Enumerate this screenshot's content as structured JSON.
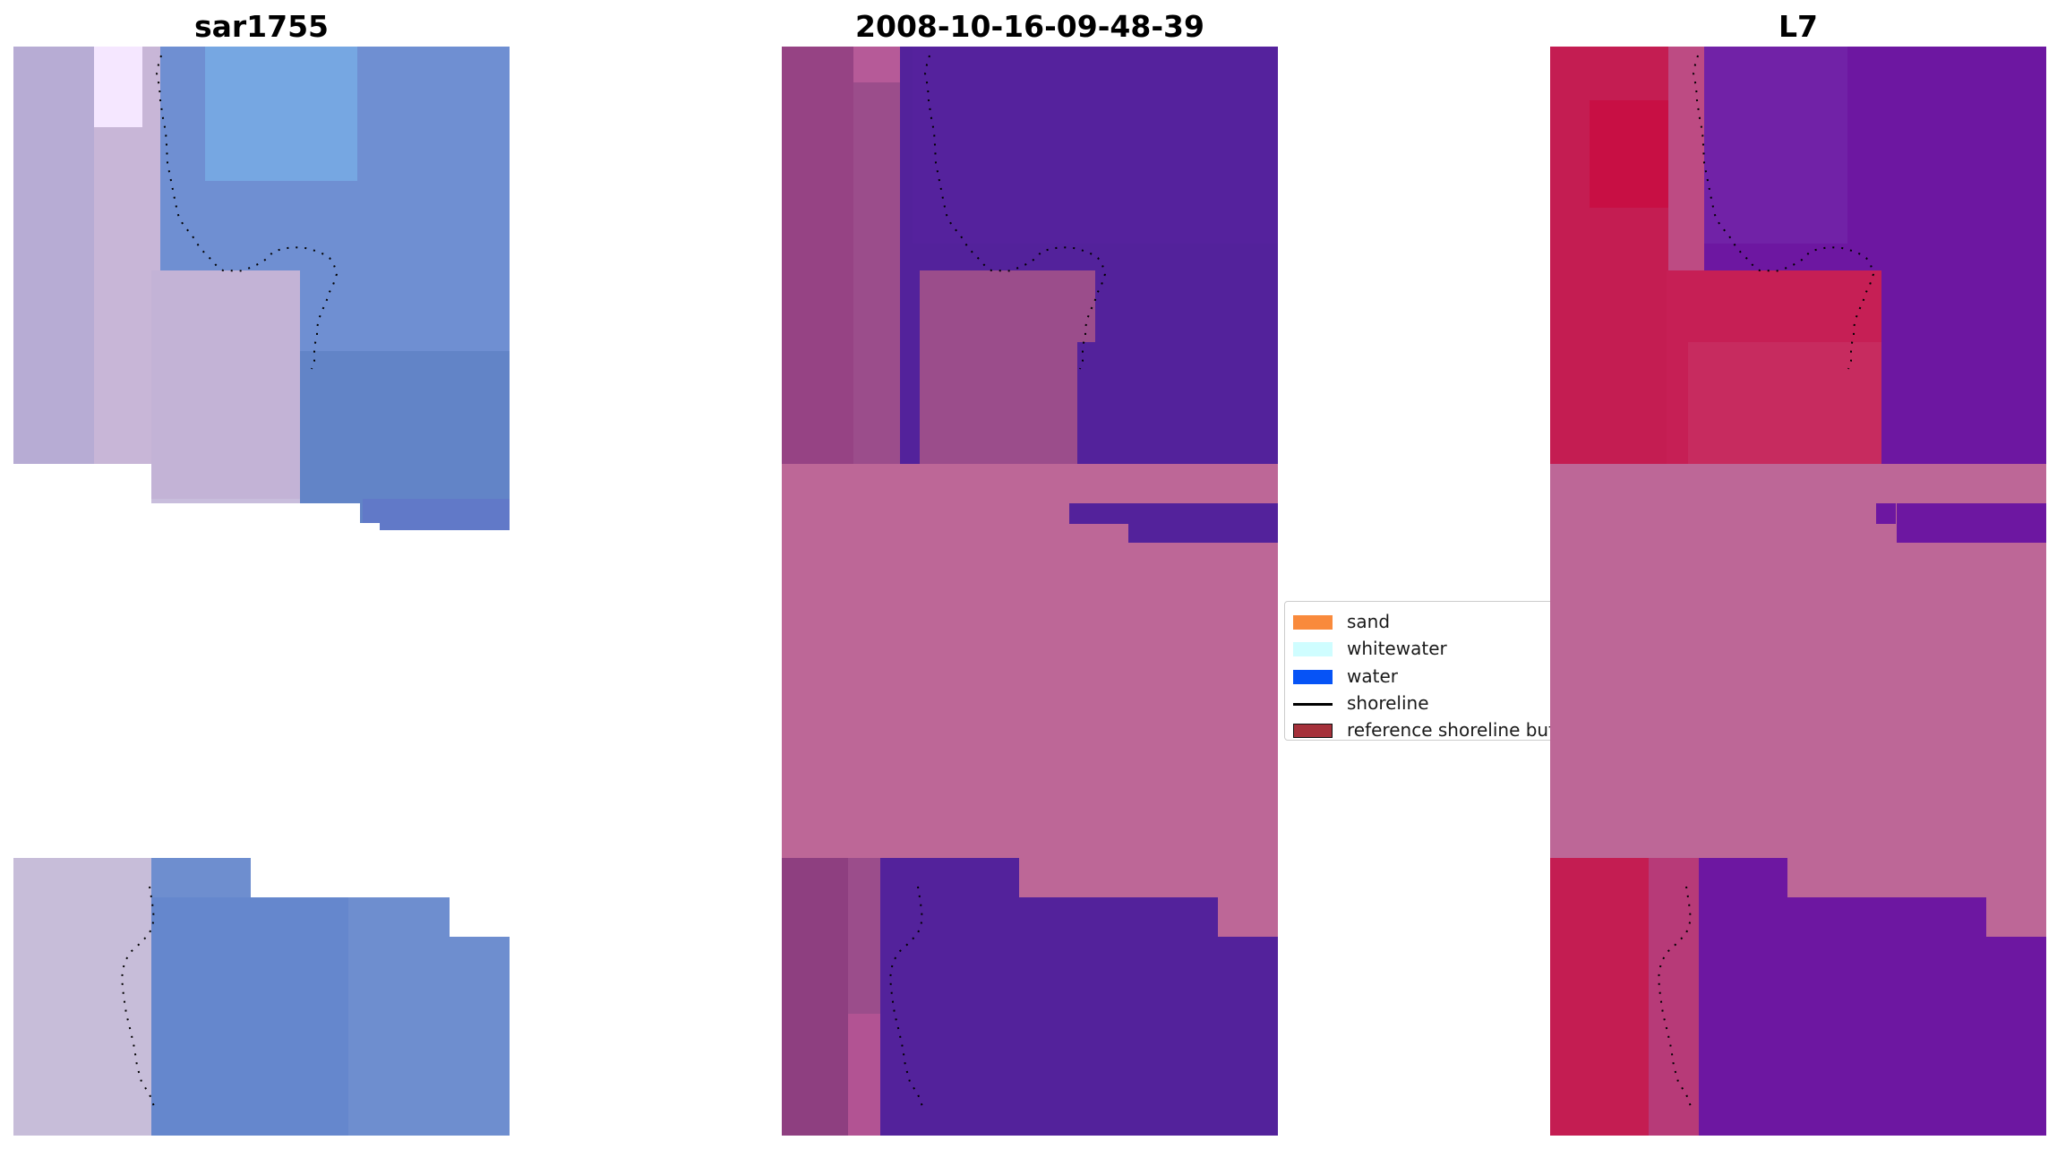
{
  "titles": {
    "left": "sar1755",
    "center": "2008-10-16-09-48-39",
    "right": "L7"
  },
  "legend": {
    "items": [
      {
        "label": "sand",
        "color": "#f98a3c",
        "kind": "swatch"
      },
      {
        "label": "whitewater",
        "color": "#cffdff",
        "kind": "swatch"
      },
      {
        "label": "water",
        "color": "#0653f6",
        "kind": "swatch"
      },
      {
        "label": "shoreline",
        "color": "#000000",
        "kind": "line"
      },
      {
        "label": "reference shoreline buffer",
        "color": "#a5303a",
        "kind": "swatch"
      }
    ]
  },
  "colors": {
    "background": "#ffffff",
    "left_land": "#c8b6d7",
    "left_water": "#6f8fd2",
    "center_land": "#9b4d8b",
    "center_water": "#53229b",
    "center_buffer": "#bd6797",
    "right_land": "#c41d52",
    "right_water": "#6d17a1",
    "right_buffer": "#bd6797",
    "shoreline": "#000000"
  }
}
